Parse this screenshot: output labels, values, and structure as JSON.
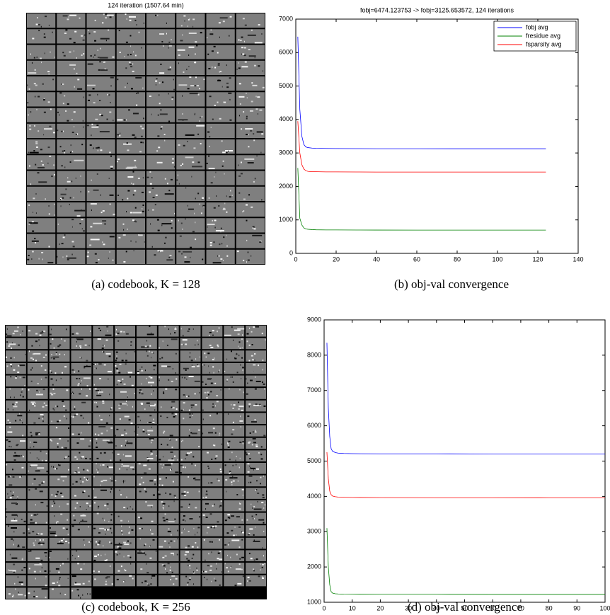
{
  "codebook_title": "124 iteration (1507.64 min)",
  "captions": [
    "(a) codebook, K = 128",
    "(b) obj-val convergence",
    "(c) codebook, K = 256",
    "(d) obj-val convergence"
  ],
  "chart_data": [
    {
      "type": "line",
      "title": "fobj=6474.123753 -> fobj=3125.653572, 124 iterations",
      "x": [
        1,
        2,
        3,
        4,
        5,
        6,
        8,
        10,
        15,
        20,
        30,
        40,
        60,
        80,
        100,
        124
      ],
      "series": [
        {
          "name": "fobj avg",
          "color": "#0000ff",
          "values": [
            6474,
            4300,
            3500,
            3250,
            3180,
            3160,
            3145,
            3140,
            3135,
            3132,
            3130,
            3128,
            3127,
            3126,
            3126,
            3126
          ]
        },
        {
          "name": "fresidue avg",
          "color": "#008000",
          "values": [
            2550,
            1050,
            850,
            760,
            730,
            720,
            710,
            705,
            700,
            700,
            698,
            697,
            696,
            695,
            695,
            695
          ]
        },
        {
          "name": "fsparsity avg",
          "color": "#ff0000",
          "values": [
            3950,
            3000,
            2650,
            2520,
            2470,
            2450,
            2440,
            2440,
            2435,
            2435,
            2432,
            2430,
            2430,
            2430,
            2430,
            2430
          ]
        }
      ],
      "xlim": [
        0,
        140
      ],
      "xticks": [
        0,
        20,
        40,
        60,
        80,
        100,
        120,
        140
      ],
      "ylim": [
        0,
        7000
      ],
      "yticks": [
        0,
        1000,
        2000,
        3000,
        4000,
        5000,
        6000,
        7000
      ],
      "legend": "upper right"
    },
    {
      "type": "line",
      "x": [
        1,
        1.5,
        2,
        2.5,
        3,
        4,
        5,
        7,
        10,
        20,
        40,
        60,
        80,
        100
      ],
      "series": [
        {
          "color": "#0000ff",
          "values": [
            8350,
            6500,
            5700,
            5350,
            5280,
            5240,
            5225,
            5215,
            5210,
            5205,
            5205,
            5200,
            5200,
            5200
          ]
        },
        {
          "color": "#ff0000",
          "values": [
            5250,
            4500,
            4150,
            4050,
            4010,
            3990,
            3980,
            3975,
            3970,
            3965,
            3960,
            3960,
            3955,
            3955
          ]
        },
        {
          "color": "#008000",
          "values": [
            3100,
            2000,
            1500,
            1300,
            1260,
            1240,
            1235,
            1230,
            1228,
            1225,
            1225,
            1222,
            1222,
            1222
          ]
        }
      ],
      "xlim": [
        0,
        100
      ],
      "xticks": [
        0,
        10,
        20,
        30,
        40,
        50,
        60,
        70,
        80,
        90,
        100
      ],
      "ylim": [
        1000,
        9000
      ],
      "yticks": [
        1000,
        2000,
        3000,
        4000,
        5000,
        6000,
        7000,
        8000,
        9000
      ]
    }
  ]
}
